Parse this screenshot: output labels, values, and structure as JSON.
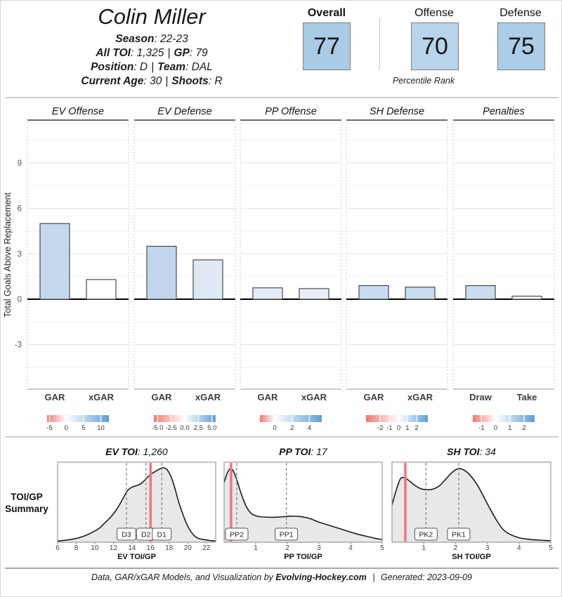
{
  "header": {
    "player_name": "Colin Miller",
    "lines": [
      {
        "b1": "Season",
        "r1": ": 22-23",
        "sep": "",
        "b2": "",
        "r2": ""
      },
      {
        "b1": "All TOI",
        "r1": ": 1,325",
        "sep": "|",
        "b2": "GP",
        "r2": ": 79"
      },
      {
        "b1": "Position",
        "r1": ": D",
        "sep": "|",
        "b2": "Team",
        "r2": ": DAL"
      },
      {
        "b1": "Current Age",
        "r1": ": 30",
        "sep": "|",
        "b2": "Shoots",
        "r2": ": R"
      }
    ],
    "percentiles": [
      {
        "label": "Overall",
        "value": "77",
        "color": "#a9cbe6"
      },
      {
        "label": "Offense",
        "value": "70",
        "color": "#b8d4ea"
      },
      {
        "label": "Defense",
        "value": "75",
        "color": "#abcde7"
      }
    ],
    "percentile_caption": "Percentile Rank"
  },
  "chart_data": [
    {
      "type": "bar",
      "ylabel": "Total Goals Above Replacement",
      "yticks": [
        9,
        6,
        3,
        0,
        -3
      ],
      "ylim": [
        -5.9,
        11.8
      ],
      "colorbar_red": "#ee7b74",
      "colorbar_blue": "#5f9ed2",
      "panels": [
        {
          "title": "EV Offense",
          "categories": [
            "GAR",
            "xGAR"
          ],
          "values": [
            5.0,
            1.3
          ],
          "bar_colors": [
            "#c5d8ee",
            "#ffffff"
          ],
          "scale_ticks": [
            "-5",
            "0",
            "5",
            "10"
          ],
          "scale_tick_pos": [
            0.04,
            0.31,
            0.59,
            0.87
          ],
          "scale_zero_pos": 0.31
        },
        {
          "title": "EV Defense",
          "categories": [
            "GAR",
            "xGAR"
          ],
          "values": [
            3.5,
            2.6
          ],
          "bar_colors": [
            "#c2d5ed",
            "#dee9f5"
          ],
          "scale_ticks": [
            "-5.0",
            "-2.5",
            "0.0",
            "2.5",
            "5.0"
          ],
          "scale_tick_pos": [
            0.06,
            0.28,
            0.5,
            0.72,
            0.94
          ],
          "scale_zero_pos": 0.5
        },
        {
          "title": "PP Offense",
          "categories": [
            "GAR",
            "xGAR"
          ],
          "values": [
            0.75,
            0.7
          ],
          "bar_colors": [
            "#e7edf7",
            "#e9eef7"
          ],
          "scale_ticks": [
            "0",
            "2",
            "4"
          ],
          "scale_tick_pos": [
            0.24,
            0.52,
            0.8
          ],
          "scale_zero_pos": 0.24
        },
        {
          "title": "SH Defense",
          "categories": [
            "GAR",
            "xGAR"
          ],
          "values": [
            0.9,
            0.8
          ],
          "bar_colors": [
            "#c9dbf0",
            "#cdddf1"
          ],
          "scale_ticks": [
            "-2",
            "-1",
            "0",
            "1",
            "2"
          ],
          "scale_tick_pos": [
            0.23,
            0.38,
            0.53,
            0.67,
            0.82
          ],
          "scale_zero_pos": 0.53
        },
        {
          "title": "Penalties",
          "categories": [
            "Draw",
            "Take"
          ],
          "values": [
            0.9,
            0.2
          ],
          "bar_colors": [
            "#cbdcf0",
            "#fdfdfd"
          ],
          "scale_ticks": [
            "-1",
            "0",
            "1",
            "2"
          ],
          "scale_tick_pos": [
            0.14,
            0.37,
            0.6,
            0.83
          ],
          "scale_zero_pos": 0.37
        }
      ]
    },
    {
      "type": "area",
      "section_label_lines": [
        "TOI/GP",
        "Summary"
      ],
      "player_line_color": "#f3747c",
      "plots": [
        {
          "title_label": "EV TOI",
          "title_value": "1,260",
          "xlabel": "EV TOI/GP",
          "xlim": [
            6,
            23
          ],
          "xticks": [
            6,
            8,
            10,
            12,
            14,
            16,
            18,
            20,
            22
          ],
          "player_value": 16.0,
          "ref_lines": [
            {
              "label": "D3",
              "x": 13.4
            },
            {
              "label": "D2",
              "x": 15.5
            },
            {
              "label": "D1",
              "x": 17.2
            }
          ],
          "density": [
            [
              6,
              0.015
            ],
            [
              7,
              0.03
            ],
            [
              8,
              0.05
            ],
            [
              9,
              0.09
            ],
            [
              10,
              0.15
            ],
            [
              10.5,
              0.19
            ],
            [
              11,
              0.25
            ],
            [
              11.5,
              0.31
            ],
            [
              12,
              0.38
            ],
            [
              12.5,
              0.47
            ],
            [
              13,
              0.58
            ],
            [
              13.5,
              0.69
            ],
            [
              14,
              0.74
            ],
            [
              14.5,
              0.76
            ],
            [
              15,
              0.79
            ],
            [
              15.5,
              0.85
            ],
            [
              16,
              0.91
            ],
            [
              16.5,
              0.95
            ],
            [
              17,
              0.985
            ],
            [
              17.4,
              1.0
            ],
            [
              17.8,
              0.97
            ],
            [
              18.2,
              0.88
            ],
            [
              18.6,
              0.73
            ],
            [
              19,
              0.55
            ],
            [
              19.4,
              0.4
            ],
            [
              19.8,
              0.27
            ],
            [
              20.2,
              0.17
            ],
            [
              20.6,
              0.1
            ],
            [
              21,
              0.06
            ],
            [
              21.5,
              0.04
            ],
            [
              22,
              0.03
            ],
            [
              22.6,
              0.02
            ],
            [
              23,
              0.018
            ]
          ]
        },
        {
          "title_label": "PP TOI",
          "title_value": "17",
          "xlabel": "PP TOI/GP",
          "xlim": [
            0,
            5
          ],
          "xticks": [
            1,
            2,
            3,
            4,
            5
          ],
          "player_value": 0.22,
          "ref_lines": [
            {
              "label": "PP2",
              "x": 0.4
            },
            {
              "label": "PP1",
              "x": 1.97
            }
          ],
          "density": [
            [
              0,
              0.8
            ],
            [
              0.1,
              0.93
            ],
            [
              0.2,
              0.99
            ],
            [
              0.3,
              0.95
            ],
            [
              0.4,
              0.84
            ],
            [
              0.55,
              0.64
            ],
            [
              0.7,
              0.48
            ],
            [
              0.85,
              0.39
            ],
            [
              1.0,
              0.355
            ],
            [
              1.2,
              0.34
            ],
            [
              1.5,
              0.335
            ],
            [
              1.8,
              0.34
            ],
            [
              2.1,
              0.35
            ],
            [
              2.4,
              0.345
            ],
            [
              2.7,
              0.32
            ],
            [
              3.0,
              0.27
            ],
            [
              3.3,
              0.23
            ],
            [
              3.6,
              0.19
            ],
            [
              3.9,
              0.15
            ],
            [
              4.2,
              0.11
            ],
            [
              4.5,
              0.08
            ],
            [
              4.8,
              0.05
            ],
            [
              5,
              0.035
            ]
          ]
        },
        {
          "title_label": "SH TOI",
          "title_value": "34",
          "xlabel": "SH TOI/GP",
          "xlim": [
            0,
            5
          ],
          "xticks": [
            1,
            2,
            3,
            4,
            5
          ],
          "player_value": 0.42,
          "ref_lines": [
            {
              "label": "PK2",
              "x": 1.07
            },
            {
              "label": "PK1",
              "x": 2.1
            }
          ],
          "density": [
            [
              0,
              0.5
            ],
            [
              0.12,
              0.68
            ],
            [
              0.25,
              0.84
            ],
            [
              0.35,
              0.87
            ],
            [
              0.5,
              0.84
            ],
            [
              0.7,
              0.77
            ],
            [
              0.9,
              0.72
            ],
            [
              1.1,
              0.705
            ],
            [
              1.3,
              0.715
            ],
            [
              1.5,
              0.76
            ],
            [
              1.7,
              0.85
            ],
            [
              1.9,
              0.94
            ],
            [
              2.1,
              0.99
            ],
            [
              2.3,
              0.96
            ],
            [
              2.5,
              0.88
            ],
            [
              2.7,
              0.76
            ],
            [
              2.9,
              0.6
            ],
            [
              3.1,
              0.44
            ],
            [
              3.3,
              0.29
            ],
            [
              3.5,
              0.17
            ],
            [
              3.7,
              0.11
            ],
            [
              4.0,
              0.06
            ],
            [
              4.4,
              0.035
            ],
            [
              4.8,
              0.025
            ],
            [
              5,
              0.02
            ]
          ]
        }
      ]
    }
  ],
  "footer": {
    "prefix": "Data, GAR/xGAR Models, and Visualization by",
    "brand": "Evolving-Hockey.com",
    "sep": "|",
    "generated": "Generated: 2023-09-09"
  }
}
